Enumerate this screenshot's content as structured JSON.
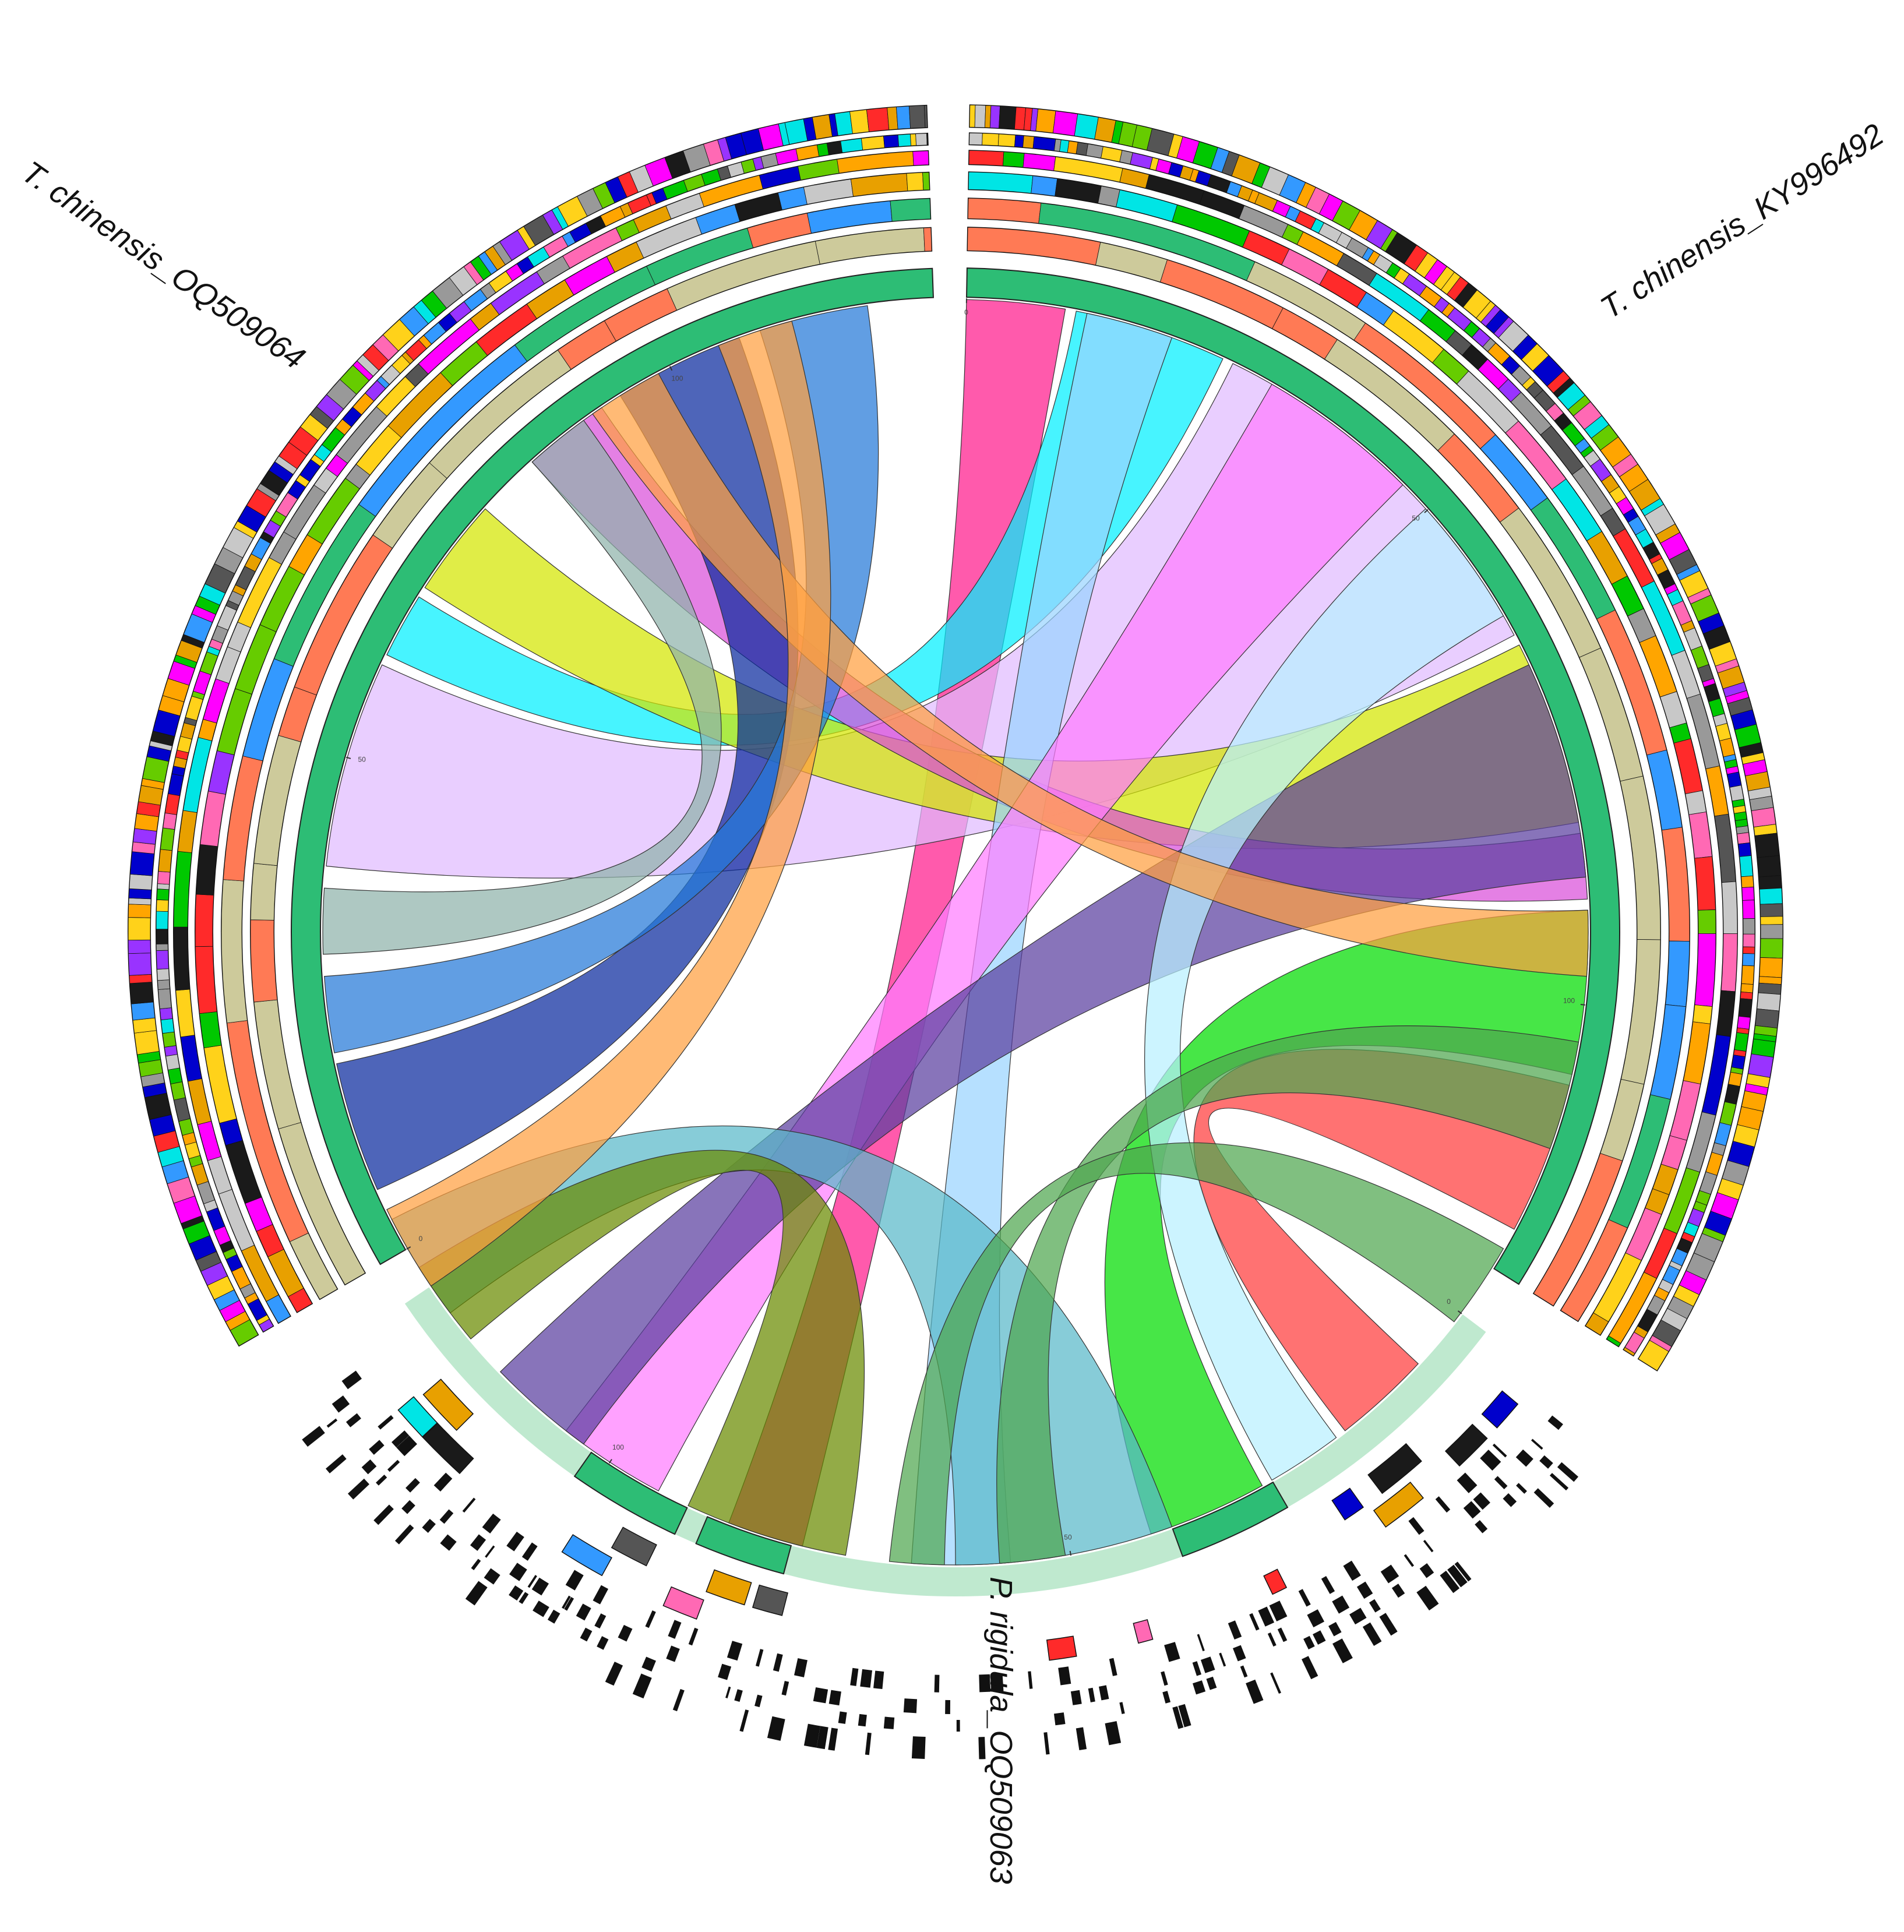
{
  "genomes": [
    {
      "id": "g1",
      "label": "T. chinensis_KY996492",
      "ticks": [
        "0",
        "50",
        "100"
      ]
    },
    {
      "id": "g2",
      "label": "P. rigidula_OQ509063",
      "ticks": [
        "0",
        "50",
        "100"
      ]
    },
    {
      "id": "g3",
      "label": "T. chinensis_OQ509064",
      "ticks": [
        "0",
        "50",
        "100"
      ]
    }
  ],
  "block_colors": [
    "#ff7dff",
    "#00f0ff",
    "#e1bbff",
    "#d4e600",
    "#d94fd9",
    "#00dd00",
    "#ff3b3b",
    "#9ad4ff",
    "#b8f0ff",
    "#59b8c9",
    "#6a8a00",
    "#ff1a8c",
    "#5a3ea0",
    "#0a2a9e",
    "#2478d8",
    "#8fb3aa",
    "#ffa040",
    "#4fa64f"
  ],
  "legend_track_colors": [
    "#e8a000",
    "#1a1a1a",
    "#ffd21a",
    "#3399ff",
    "#ff00ff",
    "#00c800",
    "#999999",
    "#ff2a2a",
    "#0000cc",
    "#9933ff",
    "#00e5e5",
    "#ffa500",
    "#66cc00",
    "#ff69b4",
    "#555555",
    "#c8c8c8"
  ]
}
